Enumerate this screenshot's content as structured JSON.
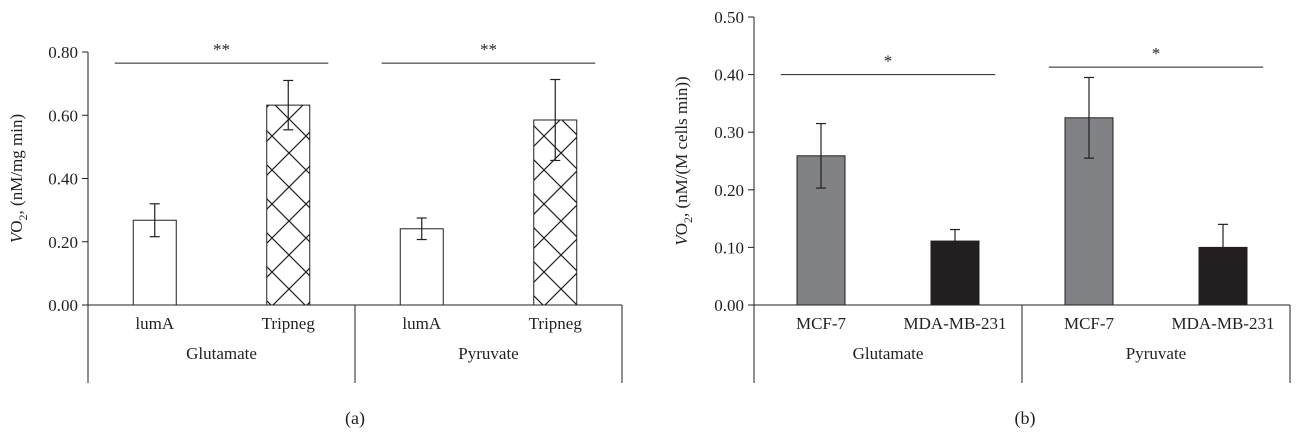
{
  "chart_data": [
    {
      "type": "bar",
      "panel_label": "(a)",
      "ylabel": {
        "base": "VO",
        "sub": "2",
        "rest": ", (nM/mg min)"
      },
      "ylim": [
        0,
        0.8
      ],
      "yticks": [
        "0.00",
        "0.20",
        "0.40",
        "0.60",
        "0.80"
      ],
      "ytick_values": [
        0,
        0.2,
        0.4,
        0.6,
        0.8
      ],
      "groups": [
        "Glutamate",
        "Pyruvate"
      ],
      "categories": [
        "lumA",
        "Tripneg",
        "lumA",
        "Tripneg"
      ],
      "values": [
        0.268,
        0.632,
        0.241,
        0.585
      ],
      "errors": [
        0.052,
        0.078,
        0.034,
        0.128
      ],
      "fills": [
        "white",
        "crosshatch",
        "white",
        "crosshatch"
      ],
      "significance": [
        {
          "label": "**",
          "from": 0,
          "to": 1,
          "y": 0.765
        },
        {
          "label": "**",
          "from": 2,
          "to": 3,
          "y": 0.765
        }
      ]
    },
    {
      "type": "bar",
      "panel_label": "(b)",
      "ylabel": {
        "base": "VO",
        "sub": "2",
        "rest": ", (nM/(M cells min))"
      },
      "ylim": [
        0,
        0.5
      ],
      "yticks": [
        "0.00",
        "0.10",
        "0.20",
        "0.30",
        "0.40",
        "0.50"
      ],
      "ytick_values": [
        0,
        0.1,
        0.2,
        0.3,
        0.4,
        0.5
      ],
      "groups": [
        "Glutamate",
        "Pyruvate"
      ],
      "categories": [
        "MCF-7",
        "MDA-MB-231",
        "MCF-7",
        "MDA-MB-231"
      ],
      "values": [
        0.259,
        0.111,
        0.325,
        0.1
      ],
      "errors": [
        0.056,
        0.02,
        0.07,
        0.04
      ],
      "fills": [
        "#808285",
        "#231f20",
        "#808285",
        "#231f20"
      ],
      "significance": [
        {
          "label": "*",
          "from": 0,
          "to": 1,
          "y": 0.4
        },
        {
          "label": "*",
          "from": 2,
          "to": 3,
          "y": 0.413
        }
      ]
    }
  ]
}
